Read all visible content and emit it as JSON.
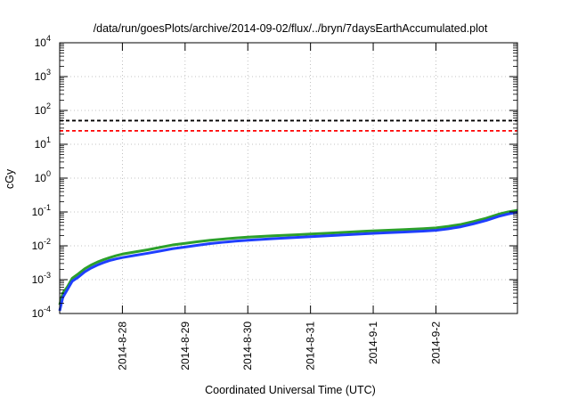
{
  "chart_data": {
    "type": "line",
    "title": "/data/run/goesPlots/archive/2014-09-02/flux/../bryn/7daysEarthAccumulated.plot",
    "xlabel": "Coordinated Universal Time (UTC)",
    "ylabel": "cGy",
    "yscale": "log",
    "ylim_exponents": [
      -4,
      4
    ],
    "y_tick_exponents": [
      -4,
      -3,
      -2,
      -1,
      0,
      1,
      2,
      3,
      4
    ],
    "y_tick_base": "10",
    "xlim": [
      0,
      7.3
    ],
    "x_ticks": [
      {
        "x": 1,
        "label": "2014-8-28"
      },
      {
        "x": 2,
        "label": "2014-8-29"
      },
      {
        "x": 3,
        "label": "2014-8-30"
      },
      {
        "x": 4,
        "label": "2014-8-31"
      },
      {
        "x": 5,
        "label": "2014-9-1"
      },
      {
        "x": 6,
        "label": "2014-9-2"
      }
    ],
    "grid": true,
    "thresholds": [
      {
        "value": 50,
        "color": "#000000",
        "style": "dashed"
      },
      {
        "value": 25,
        "color": "#ff0000",
        "style": "dashed"
      }
    ],
    "series": [
      {
        "color": "#2ca02c",
        "x": [
          0,
          0.05,
          0.12,
          0.2,
          0.3,
          0.4,
          0.5,
          0.6,
          0.7,
          0.8,
          0.9,
          1.0,
          1.2,
          1.4,
          1.6,
          1.8,
          2.0,
          2.2,
          2.4,
          2.6,
          2.8,
          3.0,
          3.2,
          3.4,
          3.6,
          3.8,
          4.0,
          4.3,
          4.6,
          4.9,
          5.2,
          5.5,
          5.8,
          6.0,
          6.2,
          6.4,
          6.6,
          6.8,
          7.0,
          7.15,
          7.3
        ],
        "y": [
          0.00018,
          0.0004,
          0.0006,
          0.0011,
          0.0015,
          0.0021,
          0.0027,
          0.0033,
          0.0039,
          0.0045,
          0.0051,
          0.0057,
          0.0066,
          0.0076,
          0.009,
          0.0106,
          0.0118,
          0.0132,
          0.0146,
          0.0158,
          0.017,
          0.018,
          0.0189,
          0.0197,
          0.0205,
          0.0214,
          0.0223,
          0.0238,
          0.0254,
          0.0271,
          0.0287,
          0.0303,
          0.0322,
          0.0338,
          0.0376,
          0.0429,
          0.0522,
          0.065,
          0.086,
          0.1,
          0.112
        ]
      },
      {
        "color": "#1f3fff",
        "x": [
          0,
          0.05,
          0.12,
          0.2,
          0.3,
          0.4,
          0.5,
          0.6,
          0.7,
          0.8,
          0.9,
          1.0,
          1.2,
          1.4,
          1.6,
          1.8,
          2.0,
          2.2,
          2.4,
          2.6,
          2.8,
          3.0,
          3.2,
          3.4,
          3.6,
          3.8,
          4.0,
          4.3,
          4.6,
          4.9,
          5.2,
          5.5,
          5.8,
          6.0,
          6.2,
          6.4,
          6.6,
          6.8,
          7.0,
          7.15,
          7.3
        ],
        "y": [
          0.00012,
          0.0003,
          0.0005,
          0.0009,
          0.0012,
          0.0017,
          0.0022,
          0.0027,
          0.0032,
          0.0037,
          0.0041,
          0.0045,
          0.0052,
          0.006,
          0.007,
          0.0082,
          0.0092,
          0.0104,
          0.0116,
          0.0127,
          0.0137,
          0.0146,
          0.0154,
          0.0162,
          0.017,
          0.0178,
          0.0186,
          0.0199,
          0.0213,
          0.0228,
          0.0242,
          0.0256,
          0.0272,
          0.0286,
          0.0319,
          0.0366,
          0.0448,
          0.056,
          0.074,
          0.087,
          0.098
        ]
      }
    ]
  }
}
